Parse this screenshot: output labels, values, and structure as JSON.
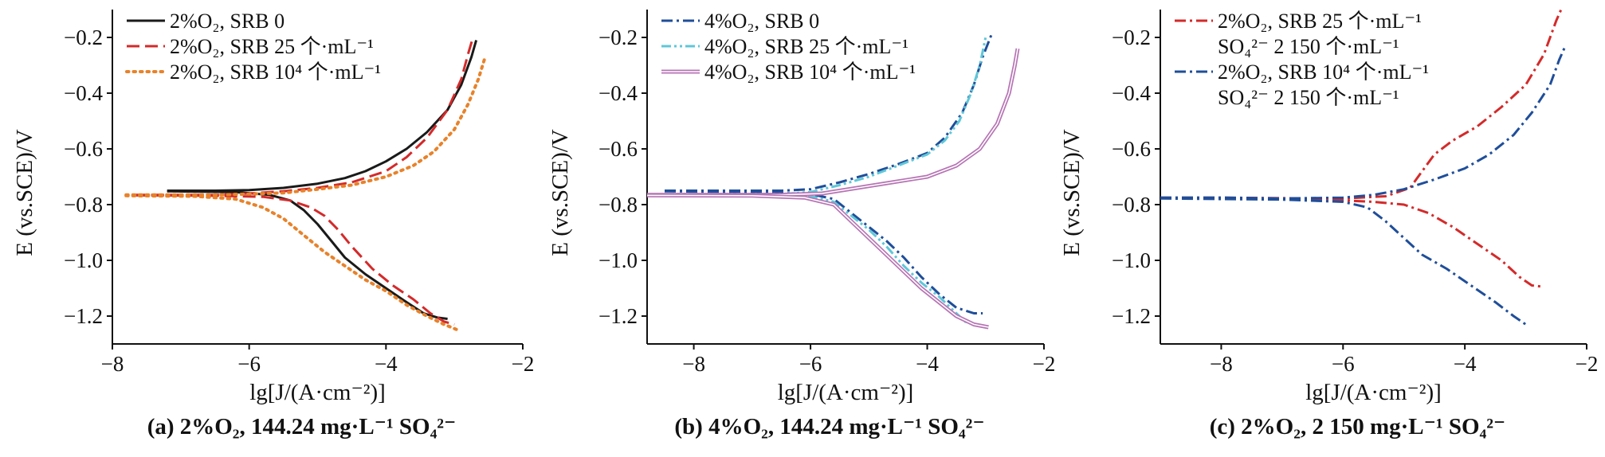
{
  "chart_data": [
    {
      "type": "line",
      "caption": "(a) 2%O₂, 144.24 mg·L⁻¹ SO₄²⁻",
      "xlabel": "lg[J/(A·cm⁻²)]",
      "ylabel": "E (vs.SCE)/V",
      "xlim": [
        -8,
        -2
      ],
      "ylim": [
        -1.3,
        -0.1
      ],
      "xticks": [
        "−8",
        "−6",
        "−4",
        "−2"
      ],
      "yticks": [
        "−0.2",
        "−0.4",
        "−0.6",
        "−0.8",
        "−1.0",
        "−1.2"
      ],
      "legend_position": "top-left",
      "series": [
        {
          "name": "2%O₂, SRB  0",
          "color": "#1a1a1a",
          "dash": "solid",
          "anodic": [
            [
              -7.2,
              -0.75
            ],
            [
              -6.5,
              -0.75
            ],
            [
              -6,
              -0.748
            ],
            [
              -5.5,
              -0.74
            ],
            [
              -5,
              -0.725
            ],
            [
              -4.6,
              -0.705
            ],
            [
              -4.3,
              -0.68
            ],
            [
              -4,
              -0.645
            ],
            [
              -3.7,
              -0.6
            ],
            [
              -3.4,
              -0.54
            ],
            [
              -3.1,
              -0.46
            ],
            [
              -2.9,
              -0.37
            ],
            [
              -2.75,
              -0.27
            ],
            [
              -2.68,
              -0.21
            ]
          ],
          "cathodic": [
            [
              -7.2,
              -0.752
            ],
            [
              -6.2,
              -0.755
            ],
            [
              -5.7,
              -0.765
            ],
            [
              -5.4,
              -0.785
            ],
            [
              -5.2,
              -0.82
            ],
            [
              -5.0,
              -0.87
            ],
            [
              -4.8,
              -0.93
            ],
            [
              -4.6,
              -0.99
            ],
            [
              -4.3,
              -1.05
            ],
            [
              -4.0,
              -1.1
            ],
            [
              -3.7,
              -1.15
            ],
            [
              -3.45,
              -1.19
            ],
            [
              -3.25,
              -1.205
            ],
            [
              -3.1,
              -1.21
            ]
          ]
        },
        {
          "name": "2%O₂, SRB  25 个·mL⁻¹",
          "color": "#d42a2a",
          "dash": "dashed",
          "anodic": [
            [
              -7.7,
              -0.765
            ],
            [
              -7,
              -0.765
            ],
            [
              -6.5,
              -0.765
            ],
            [
              -6,
              -0.76
            ],
            [
              -5.5,
              -0.752
            ],
            [
              -5,
              -0.74
            ],
            [
              -4.5,
              -0.72
            ],
            [
              -4,
              -0.68
            ],
            [
              -3.7,
              -0.63
            ],
            [
              -3.4,
              -0.56
            ],
            [
              -3.1,
              -0.46
            ],
            [
              -2.9,
              -0.35
            ],
            [
              -2.8,
              -0.26
            ],
            [
              -2.74,
              -0.21
            ]
          ],
          "cathodic": [
            [
              -7.7,
              -0.767
            ],
            [
              -6.5,
              -0.768
            ],
            [
              -5.8,
              -0.772
            ],
            [
              -5.4,
              -0.785
            ],
            [
              -5.1,
              -0.81
            ],
            [
              -4.9,
              -0.84
            ],
            [
              -4.7,
              -0.89
            ],
            [
              -4.5,
              -0.95
            ],
            [
              -4.2,
              -1.03
            ],
            [
              -3.9,
              -1.09
            ],
            [
              -3.6,
              -1.14
            ],
            [
              -3.35,
              -1.19
            ],
            [
              -3.15,
              -1.22
            ],
            [
              -3.0,
              -1.23
            ]
          ]
        },
        {
          "name": "2%O₂, SRB  10⁴ 个·mL⁻¹",
          "color": "#e8822a",
          "dash": "dotted",
          "anodic": [
            [
              -7.8,
              -0.765
            ],
            [
              -7,
              -0.765
            ],
            [
              -6.5,
              -0.765
            ],
            [
              -6,
              -0.762
            ],
            [
              -5.5,
              -0.758
            ],
            [
              -5,
              -0.745
            ],
            [
              -4.5,
              -0.73
            ],
            [
              -4,
              -0.7
            ],
            [
              -3.6,
              -0.66
            ],
            [
              -3.3,
              -0.61
            ],
            [
              -3.0,
              -0.53
            ],
            [
              -2.8,
              -0.44
            ],
            [
              -2.65,
              -0.35
            ],
            [
              -2.55,
              -0.27
            ]
          ],
          "cathodic": [
            [
              -7.8,
              -0.768
            ],
            [
              -6.8,
              -0.77
            ],
            [
              -6.2,
              -0.78
            ],
            [
              -5.8,
              -0.81
            ],
            [
              -5.5,
              -0.85
            ],
            [
              -5.2,
              -0.91
            ],
            [
              -4.9,
              -0.97
            ],
            [
              -4.6,
              -1.02
            ],
            [
              -4.3,
              -1.07
            ],
            [
              -4.0,
              -1.11
            ],
            [
              -3.7,
              -1.16
            ],
            [
              -3.4,
              -1.2
            ],
            [
              -3.15,
              -1.23
            ],
            [
              -2.95,
              -1.25
            ]
          ]
        }
      ]
    },
    {
      "type": "line",
      "caption": "(b) 4%O₂, 144.24 mg·L⁻¹ SO₄²⁻",
      "xlabel": "lg[J/(A·cm⁻²)]",
      "ylabel": "E (vs.SCE)/V",
      "xlim": [
        -8.8,
        -2
      ],
      "ylim": [
        -1.3,
        -0.1
      ],
      "xticks": [
        "−8",
        "−6",
        "−4",
        "−2"
      ],
      "yticks": [
        "−0.2",
        "−0.4",
        "−0.6",
        "−0.8",
        "−1.0",
        "−1.2"
      ],
      "legend_position": "top-left",
      "series": [
        {
          "name": "4%O₂, SRB  0",
          "color": "#1f4e9a",
          "dash": "dashdot",
          "anodic": [
            [
              -8.5,
              -0.75
            ],
            [
              -7.5,
              -0.75
            ],
            [
              -6.5,
              -0.75
            ],
            [
              -6,
              -0.745
            ],
            [
              -5.5,
              -0.72
            ],
            [
              -5,
              -0.69
            ],
            [
              -4.5,
              -0.655
            ],
            [
              -4,
              -0.615
            ],
            [
              -3.7,
              -0.56
            ],
            [
              -3.4,
              -0.47
            ],
            [
              -3.2,
              -0.37
            ],
            [
              -3.05,
              -0.27
            ],
            [
              -2.9,
              -0.19
            ]
          ],
          "cathodic": [
            [
              -8.5,
              -0.752
            ],
            [
              -7,
              -0.755
            ],
            [
              -6,
              -0.762
            ],
            [
              -5.6,
              -0.78
            ],
            [
              -5.3,
              -0.83
            ],
            [
              -5.0,
              -0.88
            ],
            [
              -4.7,
              -0.93
            ],
            [
              -4.4,
              -0.99
            ],
            [
              -4.1,
              -1.06
            ],
            [
              -3.8,
              -1.12
            ],
            [
              -3.5,
              -1.17
            ],
            [
              -3.2,
              -1.19
            ],
            [
              -3.05,
              -1.19
            ]
          ]
        },
        {
          "name": "4%O₂, SRB  25 个·mL⁻¹",
          "color": "#5fc7d8",
          "dash": "dashdotdot",
          "anodic": [
            [
              -8.5,
              -0.762
            ],
            [
              -7.5,
              -0.762
            ],
            [
              -6.5,
              -0.762
            ],
            [
              -6,
              -0.755
            ],
            [
              -5.5,
              -0.73
            ],
            [
              -5,
              -0.7
            ],
            [
              -4.5,
              -0.66
            ],
            [
              -4,
              -0.62
            ],
            [
              -3.7,
              -0.57
            ],
            [
              -3.45,
              -0.5
            ],
            [
              -3.25,
              -0.4
            ],
            [
              -3.1,
              -0.3
            ],
            [
              -3.0,
              -0.2
            ]
          ],
          "cathodic": [
            [
              -8.5,
              -0.763
            ],
            [
              -7,
              -0.765
            ],
            [
              -6,
              -0.77
            ],
            [
              -5.6,
              -0.79
            ],
            [
              -5.3,
              -0.84
            ],
            [
              -5.0,
              -0.89
            ],
            [
              -4.7,
              -0.95
            ],
            [
              -4.4,
              -1.02
            ],
            [
              -4.1,
              -1.08
            ],
            [
              -3.8,
              -1.13
            ],
            [
              -3.55,
              -1.18
            ],
            [
              -3.35,
              -1.22
            ],
            [
              -3.15,
              -1.23
            ]
          ]
        },
        {
          "name": "4%O₂, SRB  10⁴ 个·mL⁻¹",
          "color": "#b674b4",
          "dash": "double",
          "anodic": [
            [
              -8.8,
              -0.765
            ],
            [
              -7.5,
              -0.765
            ],
            [
              -6.5,
              -0.765
            ],
            [
              -5.8,
              -0.76
            ],
            [
              -5.2,
              -0.74
            ],
            [
              -4.6,
              -0.72
            ],
            [
              -4,
              -0.7
            ],
            [
              -3.5,
              -0.66
            ],
            [
              -3.1,
              -0.6
            ],
            [
              -2.8,
              -0.51
            ],
            [
              -2.6,
              -0.4
            ],
            [
              -2.5,
              -0.3
            ],
            [
              -2.45,
              -0.24
            ]
          ],
          "cathodic": [
            [
              -8.8,
              -0.767
            ],
            [
              -7,
              -0.768
            ],
            [
              -6.1,
              -0.775
            ],
            [
              -5.6,
              -0.8
            ],
            [
              -5.3,
              -0.86
            ],
            [
              -5.0,
              -0.92
            ],
            [
              -4.7,
              -0.98
            ],
            [
              -4.4,
              -1.04
            ],
            [
              -4.1,
              -1.1
            ],
            [
              -3.8,
              -1.15
            ],
            [
              -3.5,
              -1.2
            ],
            [
              -3.2,
              -1.23
            ],
            [
              -2.95,
              -1.24
            ]
          ]
        }
      ]
    },
    {
      "type": "line",
      "caption": "(c) 2%O₂, 2 150 mg·L⁻¹ SO₄²⁻",
      "xlabel": "lg[J/(A·cm⁻²)]",
      "ylabel": "E (vs.SCE)/V",
      "xlim": [
        -9,
        -2
      ],
      "ylim": [
        -1.3,
        -0.1
      ],
      "xticks": [
        "−8",
        "−6",
        "−4",
        "−2"
      ],
      "yticks": [
        "−0.2",
        "−0.4",
        "−0.6",
        "−0.8",
        "−1.0",
        "−1.2"
      ],
      "legend_position": "top-left",
      "series": [
        {
          "name": "2%O₂, SRB  25 个·mL⁻¹",
          "name_line2": "SO₄²⁻  2 150 个·mL⁻¹",
          "color": "#d42a2a",
          "dash": "dashdot",
          "anodic": [
            [
              -9,
              -0.775
            ],
            [
              -8,
              -0.775
            ],
            [
              -7,
              -0.777
            ],
            [
              -6,
              -0.778
            ],
            [
              -5.3,
              -0.77
            ],
            [
              -4.9,
              -0.74
            ],
            [
              -4.7,
              -0.68
            ],
            [
              -4.5,
              -0.62
            ],
            [
              -4.2,
              -0.57
            ],
            [
              -3.8,
              -0.52
            ],
            [
              -3.4,
              -0.45
            ],
            [
              -3.0,
              -0.37
            ],
            [
              -2.7,
              -0.26
            ],
            [
              -2.5,
              -0.14
            ],
            [
              -2.42,
              -0.1
            ]
          ],
          "cathodic": [
            [
              -9,
              -0.777
            ],
            [
              -7,
              -0.78
            ],
            [
              -6,
              -0.785
            ],
            [
              -5.5,
              -0.79
            ],
            [
              -5.0,
              -0.8
            ],
            [
              -4.6,
              -0.83
            ],
            [
              -4.2,
              -0.88
            ],
            [
              -3.8,
              -0.94
            ],
            [
              -3.4,
              -1.0
            ],
            [
              -3.1,
              -1.06
            ],
            [
              -2.9,
              -1.09
            ],
            [
              -2.7,
              -1.095
            ]
          ]
        },
        {
          "name": "2%O₂, SRB  10⁴ 个·mL⁻¹",
          "name_line2": "SO₄²⁻  2 150 个·mL⁻¹",
          "color": "#1f4e9a",
          "dash": "dashdot",
          "anodic": [
            [
              -9,
              -0.775
            ],
            [
              -8,
              -0.775
            ],
            [
              -7,
              -0.778
            ],
            [
              -6,
              -0.775
            ],
            [
              -5.5,
              -0.765
            ],
            [
              -5,
              -0.745
            ],
            [
              -4.5,
              -0.71
            ],
            [
              -4,
              -0.67
            ],
            [
              -3.6,
              -0.62
            ],
            [
              -3.2,
              -0.55
            ],
            [
              -2.9,
              -0.47
            ],
            [
              -2.6,
              -0.37
            ],
            [
              -2.45,
              -0.28
            ],
            [
              -2.35,
              -0.23
            ]
          ],
          "cathodic": [
            [
              -9,
              -0.778
            ],
            [
              -7,
              -0.782
            ],
            [
              -6,
              -0.79
            ],
            [
              -5.6,
              -0.81
            ],
            [
              -5.3,
              -0.86
            ],
            [
              -5.0,
              -0.92
            ],
            [
              -4.7,
              -0.98
            ],
            [
              -4.3,
              -1.03
            ],
            [
              -3.9,
              -1.09
            ],
            [
              -3.5,
              -1.15
            ],
            [
              -3.2,
              -1.2
            ],
            [
              -3.0,
              -1.23
            ]
          ]
        }
      ]
    }
  ]
}
